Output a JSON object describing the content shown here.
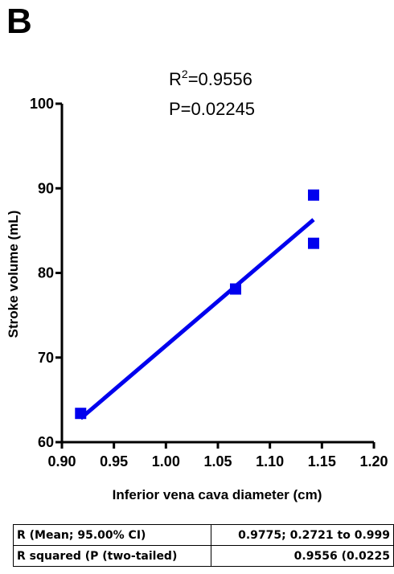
{
  "panel_label": "B",
  "annotation": {
    "r2_base": "R",
    "r2_sup": "2",
    "r2_value": "=0.9556",
    "p_text": "P=0.02245"
  },
  "chart_data": {
    "type": "scatter",
    "title": "",
    "xlabel": "Inferior vena cava diameter (cm)",
    "ylabel": "Stroke volume (mL)",
    "xlim": [
      0.9,
      1.2
    ],
    "ylim": [
      60,
      100
    ],
    "xticks": [
      "0.90",
      "0.95",
      "1.00",
      "1.05",
      "1.10",
      "1.15",
      "1.20"
    ],
    "yticks": [
      "60",
      "70",
      "80",
      "90",
      "100"
    ],
    "points": [
      {
        "x": 0.918,
        "y": 63.4
      },
      {
        "x": 1.067,
        "y": 78.1
      },
      {
        "x": 1.142,
        "y": 89.2
      },
      {
        "x": 1.142,
        "y": 83.5
      }
    ],
    "fit_line": {
      "x": [
        0.918,
        1.142
      ],
      "y": [
        62.8,
        86.3
      ]
    },
    "color": "#0000ee",
    "grid": false
  },
  "table": {
    "rows": [
      {
        "label": "R (Mean; 95.00% CI)",
        "value": "0.9775; 0.2721 to 0.999"
      },
      {
        "label": "R squared (P (two-tailed)",
        "value": "0.9556 (0.0225"
      }
    ]
  }
}
